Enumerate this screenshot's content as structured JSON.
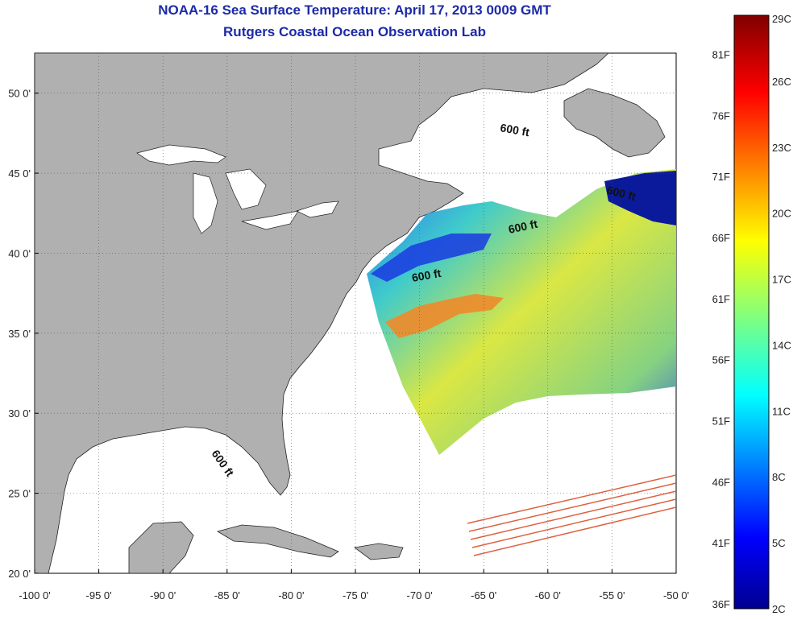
{
  "title": {
    "line1": "NOAA-16 Sea Surface Temperature:  April 17, 2013 0009 GMT",
    "line2": "Rutgers Coastal Ocean Observation Lab"
  },
  "map": {
    "lon_range": [
      -100,
      -50
    ],
    "lat_range": [
      20,
      52.5
    ],
    "lon_ticks": [
      "-100 0'",
      "-95 0'",
      "-90 0'",
      "-85 0'",
      "-80 0'",
      "-75 0'",
      "-70 0'",
      "-65 0'",
      "-60 0'",
      "-55 0'",
      "-50 0'"
    ],
    "lat_ticks": [
      "50 0'",
      "45 0'",
      "40 0'",
      "35 0'",
      "30 0'",
      "25 0'",
      "20 0'"
    ],
    "grid": "dotted",
    "land_color": "#b0b0b0",
    "depth_contour_labels": [
      "600 ft",
      "600 ft",
      "600 ft",
      "600 ft",
      "600 ft"
    ]
  },
  "colorbar": {
    "celsius_labels": [
      "29C",
      "26C",
      "23C",
      "20C",
      "17C",
      "14C",
      "11C",
      "8C",
      "5C",
      "2C"
    ],
    "fahrenheit_labels": [
      "81F",
      "76F",
      "71F",
      "66F",
      "61F",
      "56F",
      "51F",
      "46F",
      "41F",
      "36F"
    ],
    "colormap": "jet",
    "range_c": [
      2,
      29
    ]
  }
}
